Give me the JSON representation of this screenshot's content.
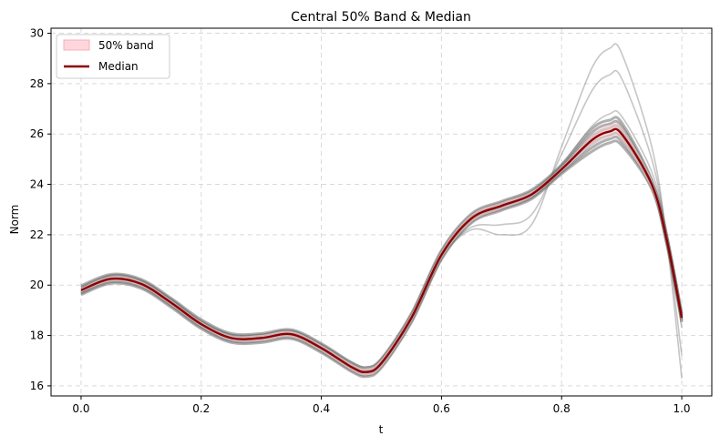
{
  "chart_data": {
    "type": "line",
    "title": "Central 50% Band & Median",
    "xlabel": "t",
    "ylabel": "Norm",
    "xlim": [
      -0.05,
      1.05
    ],
    "ylim": [
      15.6,
      30.2
    ],
    "grid": true,
    "legend_position": "upper-left",
    "xticks": [
      0.0,
      0.2,
      0.4,
      0.6,
      0.8,
      1.0
    ],
    "xtick_labels": [
      "0.0",
      "0.2",
      "0.4",
      "0.6",
      "0.8",
      "1.0"
    ],
    "yticks": [
      16,
      18,
      20,
      22,
      24,
      26,
      28,
      30
    ],
    "ytick_labels": [
      "16",
      "18",
      "20",
      "22",
      "24",
      "26",
      "28",
      "30"
    ],
    "band_label": "50% band",
    "band_color": "#ffd6db",
    "median_label": "Median",
    "median_color": "#8b0000",
    "sample_color": "#808080",
    "median": {
      "x": [
        0.0,
        0.05,
        0.1,
        0.15,
        0.2,
        0.25,
        0.3,
        0.35,
        0.4,
        0.45,
        0.475,
        0.5,
        0.55,
        0.6,
        0.65,
        0.7,
        0.75,
        0.8,
        0.85,
        0.88,
        0.9,
        0.95,
        0.975,
        1.0
      ],
      "y": [
        19.8,
        20.25,
        20.05,
        19.3,
        18.45,
        17.9,
        17.9,
        18.05,
        17.5,
        16.75,
        16.55,
        16.9,
        18.7,
        21.2,
        22.65,
        23.15,
        23.6,
        24.6,
        25.75,
        26.1,
        26.0,
        24.0,
        21.8,
        18.7
      ]
    },
    "band": {
      "x": [
        0.0,
        0.05,
        0.1,
        0.15,
        0.2,
        0.25,
        0.3,
        0.35,
        0.4,
        0.45,
        0.475,
        0.5,
        0.55,
        0.6,
        0.65,
        0.7,
        0.75,
        0.8,
        0.85,
        0.88,
        0.9,
        0.95,
        0.975,
        1.0
      ],
      "lower": [
        19.72,
        20.15,
        19.95,
        19.2,
        18.35,
        17.8,
        17.78,
        17.93,
        17.38,
        16.62,
        16.42,
        16.75,
        18.55,
        21.05,
        22.5,
        23.02,
        23.5,
        24.5,
        25.55,
        25.85,
        25.75,
        23.8,
        21.6,
        18.5
      ],
      "upper": [
        19.88,
        20.35,
        20.15,
        19.4,
        18.55,
        18.0,
        18.02,
        18.17,
        17.62,
        16.88,
        16.7,
        17.05,
        18.85,
        21.35,
        22.8,
        23.28,
        23.72,
        24.7,
        25.95,
        26.35,
        26.25,
        24.2,
        22.0,
        18.9
      ]
    },
    "sample_paths": [
      {
        "x": [
          0.0,
          0.05,
          0.1,
          0.15,
          0.2,
          0.25,
          0.3,
          0.35,
          0.4,
          0.45,
          0.475,
          0.5,
          0.55,
          0.6,
          0.65,
          0.7,
          0.75,
          0.8,
          0.85,
          0.88,
          0.9,
          0.95,
          0.975,
          1.0
        ],
        "y": [
          19.75,
          20.4,
          20.2,
          19.45,
          18.55,
          18.05,
          18.05,
          18.2,
          17.65,
          16.95,
          16.75,
          17.1,
          18.8,
          21.1,
          22.2,
          22.0,
          22.4,
          25.5,
          28.6,
          29.4,
          29.2,
          25.5,
          21.8,
          16.3
        ]
      },
      {
        "x": [
          0.0,
          0.05,
          0.1,
          0.15,
          0.2,
          0.25,
          0.3,
          0.35,
          0.4,
          0.45,
          0.475,
          0.5,
          0.55,
          0.6,
          0.65,
          0.7,
          0.75,
          0.8,
          0.85,
          0.88,
          0.9,
          0.95,
          0.975,
          1.0
        ],
        "y": [
          19.8,
          20.3,
          20.1,
          19.35,
          18.5,
          17.95,
          17.95,
          18.1,
          17.55,
          16.8,
          16.6,
          16.95,
          18.75,
          21.15,
          22.3,
          22.4,
          22.8,
          25.2,
          27.7,
          28.35,
          28.2,
          25.0,
          21.9,
          17.2
        ]
      },
      {
        "x": [
          0.0,
          0.05,
          0.1,
          0.15,
          0.2,
          0.25,
          0.3,
          0.35,
          0.4,
          0.45,
          0.475,
          0.5,
          0.55,
          0.6,
          0.65,
          0.7,
          0.75,
          0.8,
          0.85,
          0.88,
          0.9,
          0.95,
          0.975,
          1.0
        ],
        "y": [
          19.7,
          20.2,
          20.0,
          19.25,
          18.4,
          17.85,
          17.85,
          18.0,
          17.45,
          16.7,
          16.5,
          16.85,
          18.65,
          21.1,
          22.55,
          23.1,
          23.6,
          24.8,
          26.3,
          26.8,
          26.7,
          24.5,
          22.1,
          18.3
        ]
      },
      {
        "x": [
          0.0,
          0.05,
          0.1,
          0.15,
          0.2,
          0.25,
          0.3,
          0.35,
          0.4,
          0.45,
          0.475,
          0.5,
          0.55,
          0.6,
          0.65,
          0.7,
          0.75,
          0.8,
          0.85,
          0.88,
          0.9,
          0.95,
          0.975,
          1.0
        ],
        "y": [
          19.85,
          20.3,
          20.1,
          19.35,
          18.5,
          17.95,
          17.95,
          18.1,
          17.55,
          16.8,
          16.6,
          16.95,
          18.75,
          21.25,
          22.7,
          23.2,
          23.65,
          24.65,
          25.85,
          26.2,
          26.1,
          24.1,
          21.9,
          18.8
        ]
      },
      {
        "x": [
          0.0,
          0.05,
          0.1,
          0.15,
          0.2,
          0.25,
          0.3,
          0.35,
          0.4,
          0.45,
          0.475,
          0.5,
          0.55,
          0.6,
          0.65,
          0.7,
          0.75,
          0.8,
          0.85,
          0.88,
          0.9,
          0.95,
          0.975,
          1.0
        ],
        "y": [
          19.78,
          20.22,
          20.02,
          19.27,
          18.42,
          17.87,
          17.86,
          18.0,
          17.45,
          16.7,
          16.5,
          16.85,
          18.65,
          21.15,
          22.6,
          23.1,
          23.55,
          24.55,
          25.65,
          25.95,
          25.85,
          23.9,
          21.7,
          18.6
        ]
      }
    ]
  }
}
